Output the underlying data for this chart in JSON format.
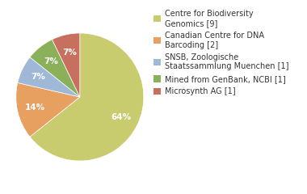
{
  "labels": [
    "Centre for Biodiversity\nGenomics [9]",
    "Canadian Centre for DNA\nBarcoding [2]",
    "SNSB, Zoologische\nStaatssammlung Muenchen [1]",
    "Mined from GenBank, NCBI [1]",
    "Microsynth AG [1]"
  ],
  "values": [
    9,
    2,
    1,
    1,
    1
  ],
  "colors": [
    "#c8cc6e",
    "#e8a060",
    "#a0b8d8",
    "#8ab05a",
    "#c87060"
  ],
  "startangle": 90,
  "background_color": "#ffffff",
  "text_color": "#333333",
  "pct_fontsize": 7.5,
  "legend_fontsize": 7.0
}
